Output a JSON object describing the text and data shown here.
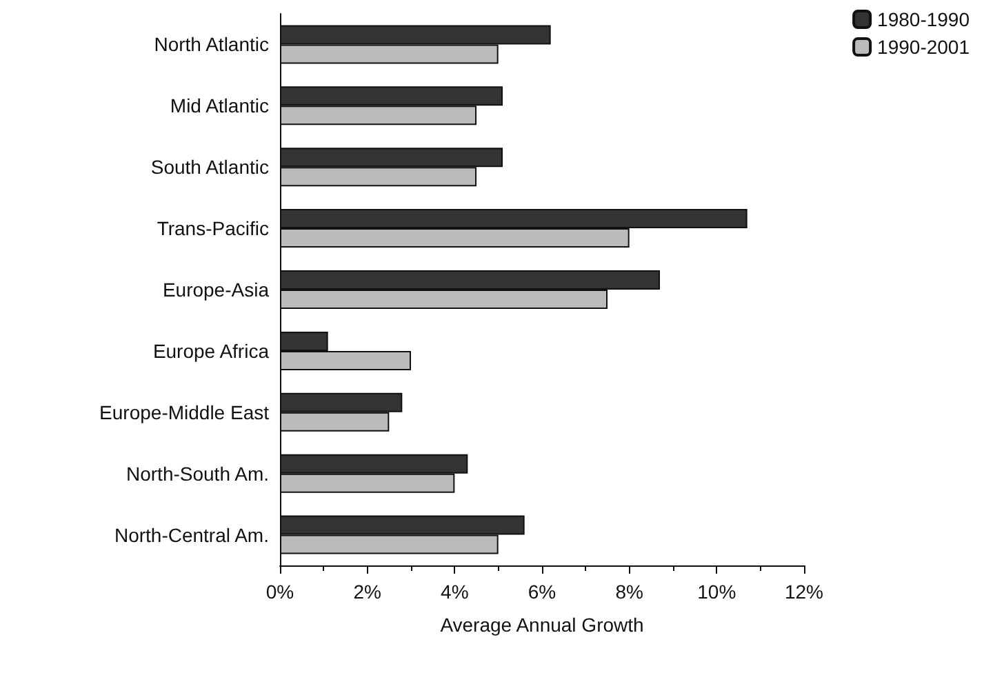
{
  "chart_data": {
    "type": "bar",
    "orientation": "horizontal",
    "xlabel": "Average Annual Growth",
    "categories": [
      "North Atlantic",
      "Mid Atlantic",
      "South Atlantic",
      "Trans-Pacific",
      "Europe-Asia",
      "Europe Africa",
      "Europe-Middle East",
      "North-South Am.",
      "North-Central Am."
    ],
    "series": [
      {
        "name": "1980-1990",
        "color": "#333333",
        "values": [
          6.2,
          5.1,
          5.1,
          10.7,
          8.7,
          1.1,
          2.8,
          4.3,
          5.6
        ]
      },
      {
        "name": "1990-2001",
        "color": "#bbbbbb",
        "values": [
          5.0,
          4.5,
          4.5,
          8.0,
          7.5,
          3.0,
          2.5,
          4.0,
          5.0
        ]
      }
    ],
    "xlim": [
      0,
      12
    ],
    "xticks": [
      {
        "value": 0,
        "label": "0%"
      },
      {
        "value": 2,
        "label": "2%"
      },
      {
        "value": 4,
        "label": "4%"
      },
      {
        "value": 6,
        "label": "6%"
      },
      {
        "value": 8,
        "label": "8%"
      },
      {
        "value": 10,
        "label": "10%"
      },
      {
        "value": 12,
        "label": "12%"
      }
    ],
    "legend": "top right",
    "grid": false
  }
}
